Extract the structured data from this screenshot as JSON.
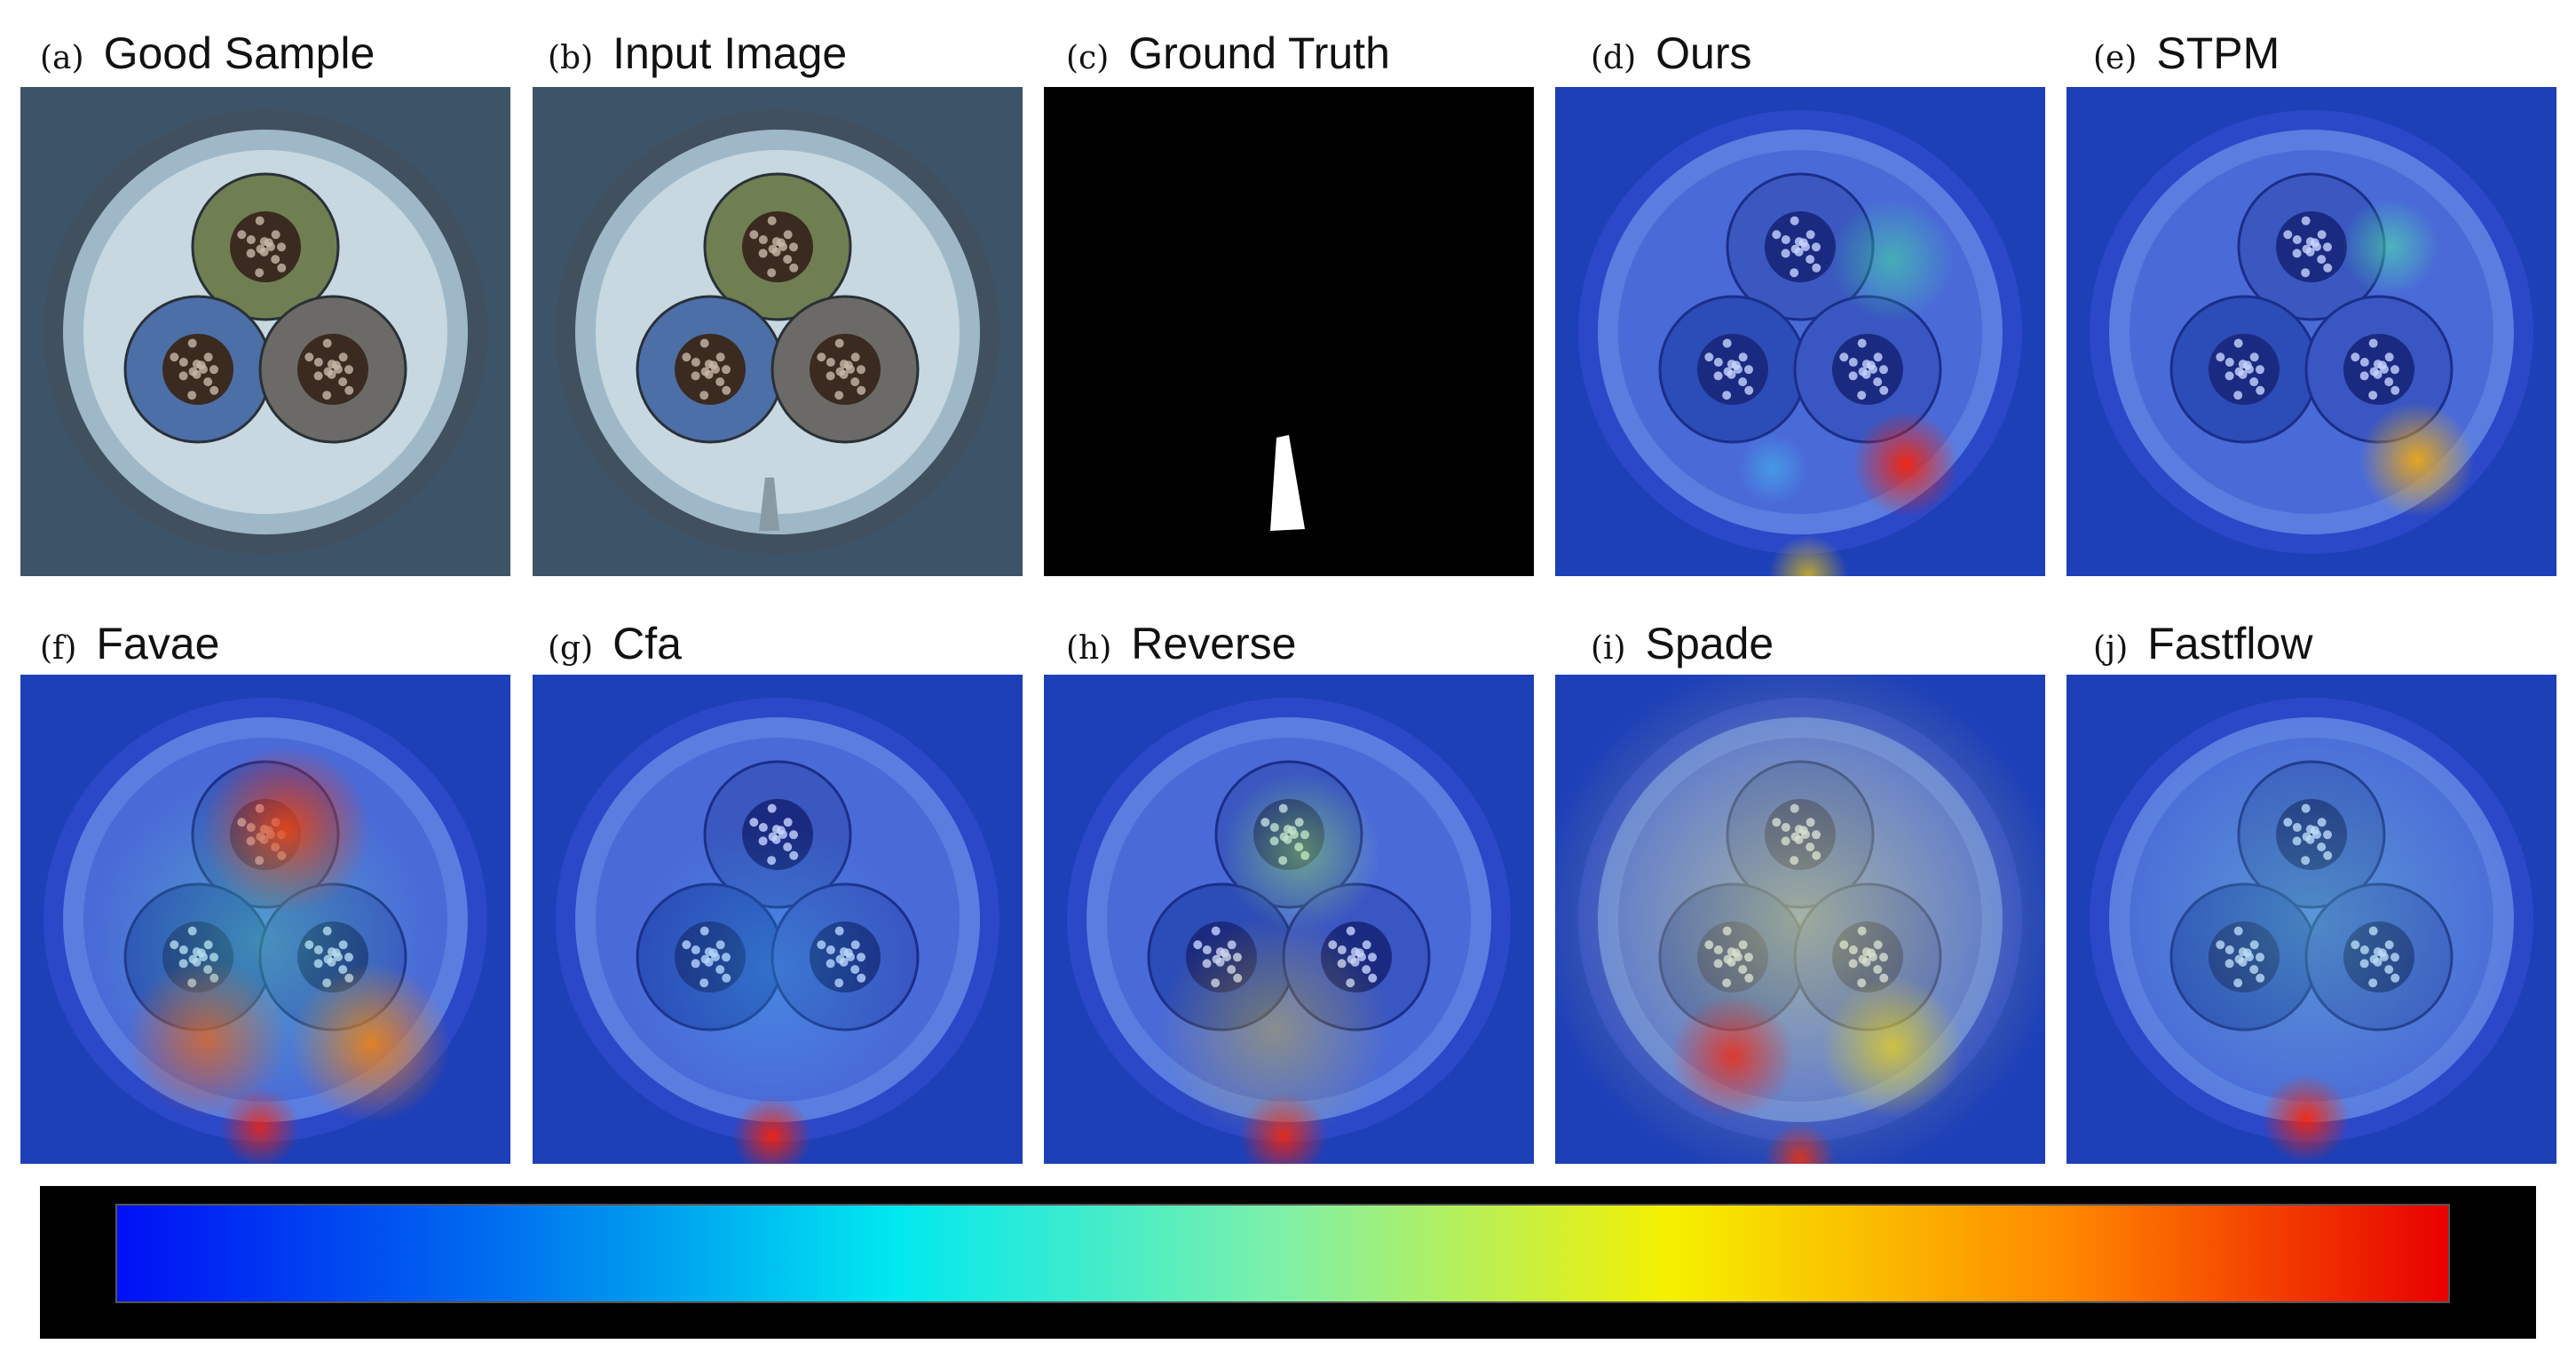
{
  "panels": [
    {
      "tag": "(a)",
      "name": "Good Sample",
      "kind": "rgb"
    },
    {
      "tag": "(b)",
      "name": "Input Image",
      "kind": "rgb-defect"
    },
    {
      "tag": "(c)",
      "name": "Ground Truth",
      "kind": "mask"
    },
    {
      "tag": "(d)",
      "name": "Ours",
      "kind": "heatmap"
    },
    {
      "tag": "(e)",
      "name": "STPM",
      "kind": "heatmap"
    },
    {
      "tag": "(f)",
      "name": "Favae",
      "kind": "heatmap"
    },
    {
      "tag": "(g)",
      "name": "Cfa",
      "kind": "heatmap"
    },
    {
      "tag": "(h)",
      "name": "Reverse",
      "kind": "heatmap"
    },
    {
      "tag": "(i)",
      "name": "Spade",
      "kind": "heatmap"
    },
    {
      "tag": "(j)",
      "name": "Fastflow",
      "kind": "heatmap"
    }
  ],
  "colorbar": {
    "colors": [
      "#0010f5",
      "#0070ee",
      "#00e8f0",
      "#7ef0a8",
      "#f5f000",
      "#ff8a00",
      "#e80000"
    ]
  }
}
